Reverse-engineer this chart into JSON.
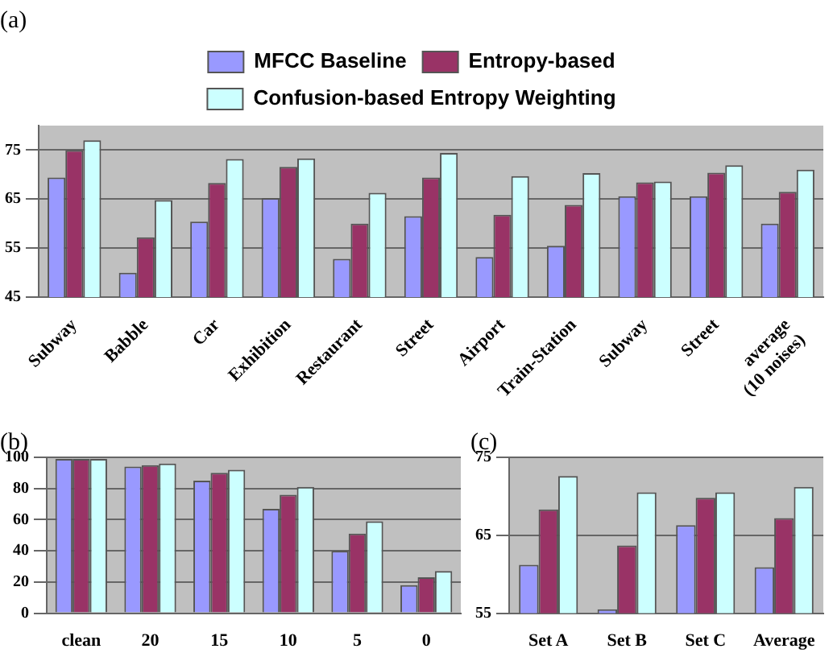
{
  "chart_data": [
    {
      "type": "bar",
      "title": "(a)",
      "categories": [
        "Subway",
        "Babble",
        "Car",
        "Exhibition",
        "Restaurant",
        "Street",
        "Airport",
        "Train-Station",
        "Subway",
        "Street",
        "average\n(10 noises)"
      ],
      "series": [
        {
          "name": "MFCC Baseline",
          "color": "#9999ff",
          "values": [
            69.4,
            50.0,
            60.4,
            65.2,
            52.8,
            61.5,
            53.2,
            55.5,
            65.6,
            65.6,
            60.0
          ]
        },
        {
          "name": "Entropy-based",
          "color": "#993366",
          "values": [
            75.0,
            57.2,
            68.3,
            71.6,
            60.0,
            69.4,
            61.8,
            63.8,
            68.4,
            70.4,
            66.5
          ]
        },
        {
          "name": "Confusion-based Entropy Weighting",
          "color": "#ccffff",
          "values": [
            77.0,
            64.8,
            73.2,
            73.3,
            66.3,
            74.4,
            69.7,
            70.3,
            68.6,
            71.9,
            71.0
          ]
        }
      ],
      "ylim": [
        45,
        80
      ],
      "yticks": [
        45,
        55,
        65,
        75
      ],
      "grid": "y",
      "legend": "top"
    },
    {
      "type": "bar",
      "title": "(b)",
      "categories": [
        "clean",
        "20",
        "15",
        "10",
        "5",
        "0"
      ],
      "series": [
        {
          "color": "#9999ff",
          "values": [
            99,
            94,
            85,
            67,
            40,
            18
          ]
        },
        {
          "color": "#993366",
          "values": [
            99,
            95,
            90,
            76,
            51,
            23
          ]
        },
        {
          "color": "#ccffff",
          "values": [
            99,
            96,
            92,
            81,
            59,
            27
          ]
        }
      ],
      "ylim": [
        0,
        100
      ],
      "yticks": [
        0,
        20,
        40,
        60,
        80,
        100
      ],
      "grid": "y"
    },
    {
      "type": "bar",
      "title": "(c)",
      "categories": [
        "Set A",
        "Set B",
        "Set C",
        "Average"
      ],
      "series": [
        {
          "color": "#9999ff",
          "values": [
            61.2,
            55.5,
            66.3,
            60.9
          ]
        },
        {
          "color": "#993366",
          "values": [
            68.3,
            63.7,
            69.8,
            67.2
          ]
        },
        {
          "color": "#ccffff",
          "values": [
            72.6,
            70.5,
            70.5,
            71.2
          ]
        }
      ],
      "ylim": [
        55,
        75
      ],
      "yticks": [
        55,
        65,
        75
      ],
      "grid": "y"
    }
  ]
}
